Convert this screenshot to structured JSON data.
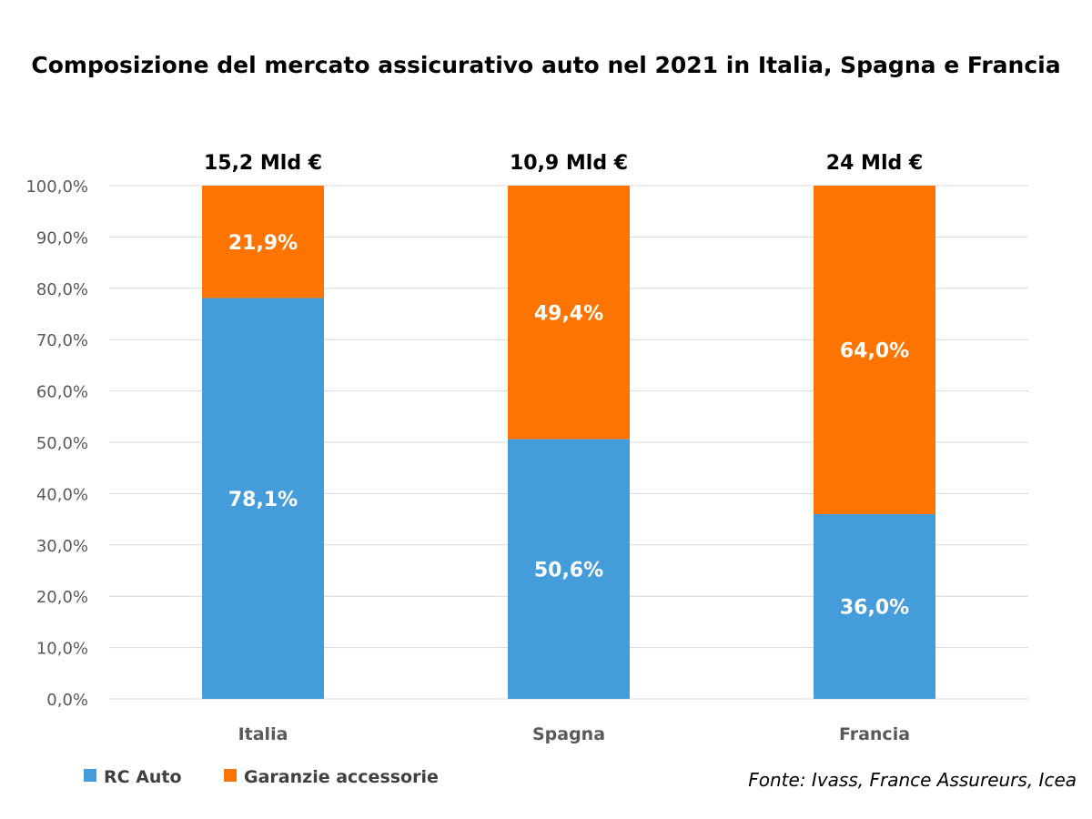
{
  "chart_data": {
    "type": "bar",
    "stacked": true,
    "title": "Composizione del mercato assicurativo auto nel 2021 in Italia, Spagna e Francia",
    "categories": [
      "Italia",
      "Spagna",
      "Francia"
    ],
    "totals": [
      "15,2 Mld €",
      "10,9 Mld €",
      "24 Mld €"
    ],
    "series": [
      {
        "name": "RC Auto",
        "color": "#449cdb",
        "values": [
          78.1,
          50.6,
          36.0
        ],
        "labels": [
          "78,1%",
          "50,6%",
          "36,0%"
        ]
      },
      {
        "name": "Garanzie accessorie",
        "color": "#fd7400",
        "values": [
          21.9,
          49.4,
          64.0
        ],
        "labels": [
          "21,9%",
          "49,4%",
          "64,0%"
        ]
      }
    ],
    "ylim": [
      0,
      100
    ],
    "yticks": [
      "0,0%",
      "10,0%",
      "20,0%",
      "30,0%",
      "40,0%",
      "50,0%",
      "60,0%",
      "70,0%",
      "80,0%",
      "90,0%",
      "100,0%"
    ],
    "grid": true,
    "legend_position": "bottom-left",
    "source": "Fonte: Ivass, France Assureurs, Icea"
  }
}
